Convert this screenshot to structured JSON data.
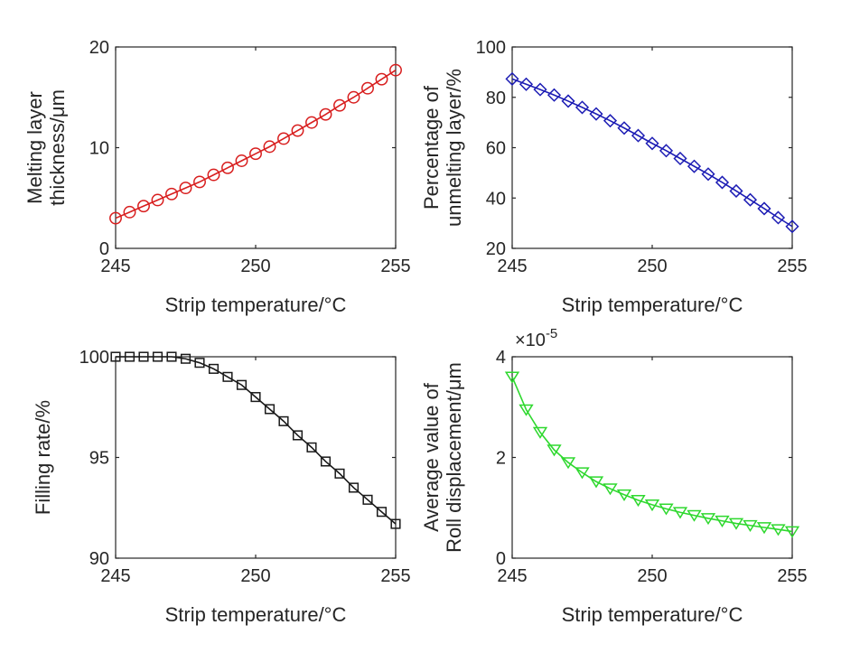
{
  "chart_data": [
    {
      "type": "line",
      "marker": "circle",
      "color": "#d81e1e",
      "xlabel": "Strip temperature/°C",
      "ylabel": [
        "Melting layer",
        "thickness/μm"
      ],
      "xlim": [
        245,
        255
      ],
      "ylim": [
        0,
        20
      ],
      "xticks": [
        "245",
        "250",
        "255"
      ],
      "yticks": [
        "0",
        "10",
        "20"
      ],
      "xtick_values": [
        245,
        250,
        255
      ],
      "ytick_values": [
        0,
        10,
        20
      ],
      "x": [
        245,
        245.5,
        246,
        246.5,
        247,
        247.5,
        248,
        248.5,
        249,
        249.5,
        250,
        250.5,
        251,
        251.5,
        252,
        252.5,
        253,
        253.5,
        254,
        254.5,
        255
      ],
      "y": [
        3.0,
        3.6,
        4.2,
        4.8,
        5.4,
        6.0,
        6.6,
        7.3,
        8.0,
        8.7,
        9.4,
        10.1,
        10.9,
        11.7,
        12.5,
        13.3,
        14.2,
        15.0,
        15.9,
        16.8,
        17.7
      ]
    },
    {
      "type": "line",
      "marker": "diamond",
      "color": "#1c1cb4",
      "xlabel": "Strip temperature/°C",
      "ylabel": [
        "Percentage of",
        "unmelting layer/%"
      ],
      "xlim": [
        245,
        255
      ],
      "ylim": [
        20,
        100
      ],
      "xticks": [
        "245",
        "250",
        "255"
      ],
      "yticks": [
        "20",
        "40",
        "60",
        "80",
        "100"
      ],
      "xtick_values": [
        245,
        250,
        255
      ],
      "ytick_values": [
        20,
        40,
        60,
        80,
        100
      ],
      "x": [
        245,
        245.5,
        246,
        246.5,
        247,
        247.5,
        248,
        248.5,
        249,
        249.5,
        250,
        250.5,
        251,
        251.5,
        252,
        252.5,
        253,
        253.5,
        254,
        254.5,
        255
      ],
      "y": [
        87.3,
        85.2,
        83.1,
        80.9,
        78.5,
        76.0,
        73.4,
        70.7,
        67.8,
        64.8,
        61.7,
        58.8,
        55.7,
        52.6,
        49.5,
        46.2,
        42.8,
        39.3,
        35.8,
        32.2,
        28.7
      ]
    },
    {
      "type": "line",
      "marker": "square",
      "color": "#1a1a1a",
      "xlabel": "Strip temperature/°C",
      "ylabel": [
        "Filling rate/%"
      ],
      "xlim": [
        245,
        255
      ],
      "ylim": [
        90,
        100
      ],
      "xticks": [
        "245",
        "250",
        "255"
      ],
      "yticks": [
        "90",
        "95",
        "100"
      ],
      "xtick_values": [
        245,
        250,
        255
      ],
      "ytick_values": [
        90,
        95,
        100
      ],
      "x": [
        245,
        245.5,
        246,
        246.5,
        247,
        247.5,
        248,
        248.5,
        249,
        249.5,
        250,
        250.5,
        251,
        251.5,
        252,
        252.5,
        253,
        253.5,
        254,
        254.5,
        255
      ],
      "y": [
        100,
        100,
        100,
        100,
        100,
        99.9,
        99.7,
        99.4,
        99.0,
        98.6,
        98.0,
        97.4,
        96.8,
        96.1,
        95.5,
        94.8,
        94.2,
        93.5,
        92.9,
        92.3,
        91.7
      ]
    },
    {
      "type": "line",
      "marker": "triangle-down",
      "color": "#2ed82e",
      "xlabel": "Strip temperature/°C",
      "ylabel": [
        "Average value of",
        "Roll displacement/μm"
      ],
      "xlim": [
        245,
        255
      ],
      "ylim": [
        0,
        4
      ],
      "xticks": [
        "245",
        "250",
        "255"
      ],
      "yticks": [
        "0",
        "2",
        "4"
      ],
      "xtick_values": [
        245,
        250,
        255
      ],
      "ytick_values": [
        0,
        2,
        4
      ],
      "exponent_label": "×10",
      "exponent_power": "-5",
      "x": [
        245,
        245.5,
        246,
        246.5,
        247,
        247.5,
        248,
        248.5,
        249,
        249.5,
        250,
        250.5,
        251,
        251.5,
        252,
        252.5,
        253,
        253.5,
        254,
        254.5,
        255
      ],
      "y": [
        3.6,
        2.95,
        2.5,
        2.15,
        1.9,
        1.7,
        1.52,
        1.38,
        1.26,
        1.15,
        1.06,
        0.98,
        0.91,
        0.85,
        0.79,
        0.74,
        0.69,
        0.65,
        0.61,
        0.57,
        0.53
      ]
    }
  ]
}
